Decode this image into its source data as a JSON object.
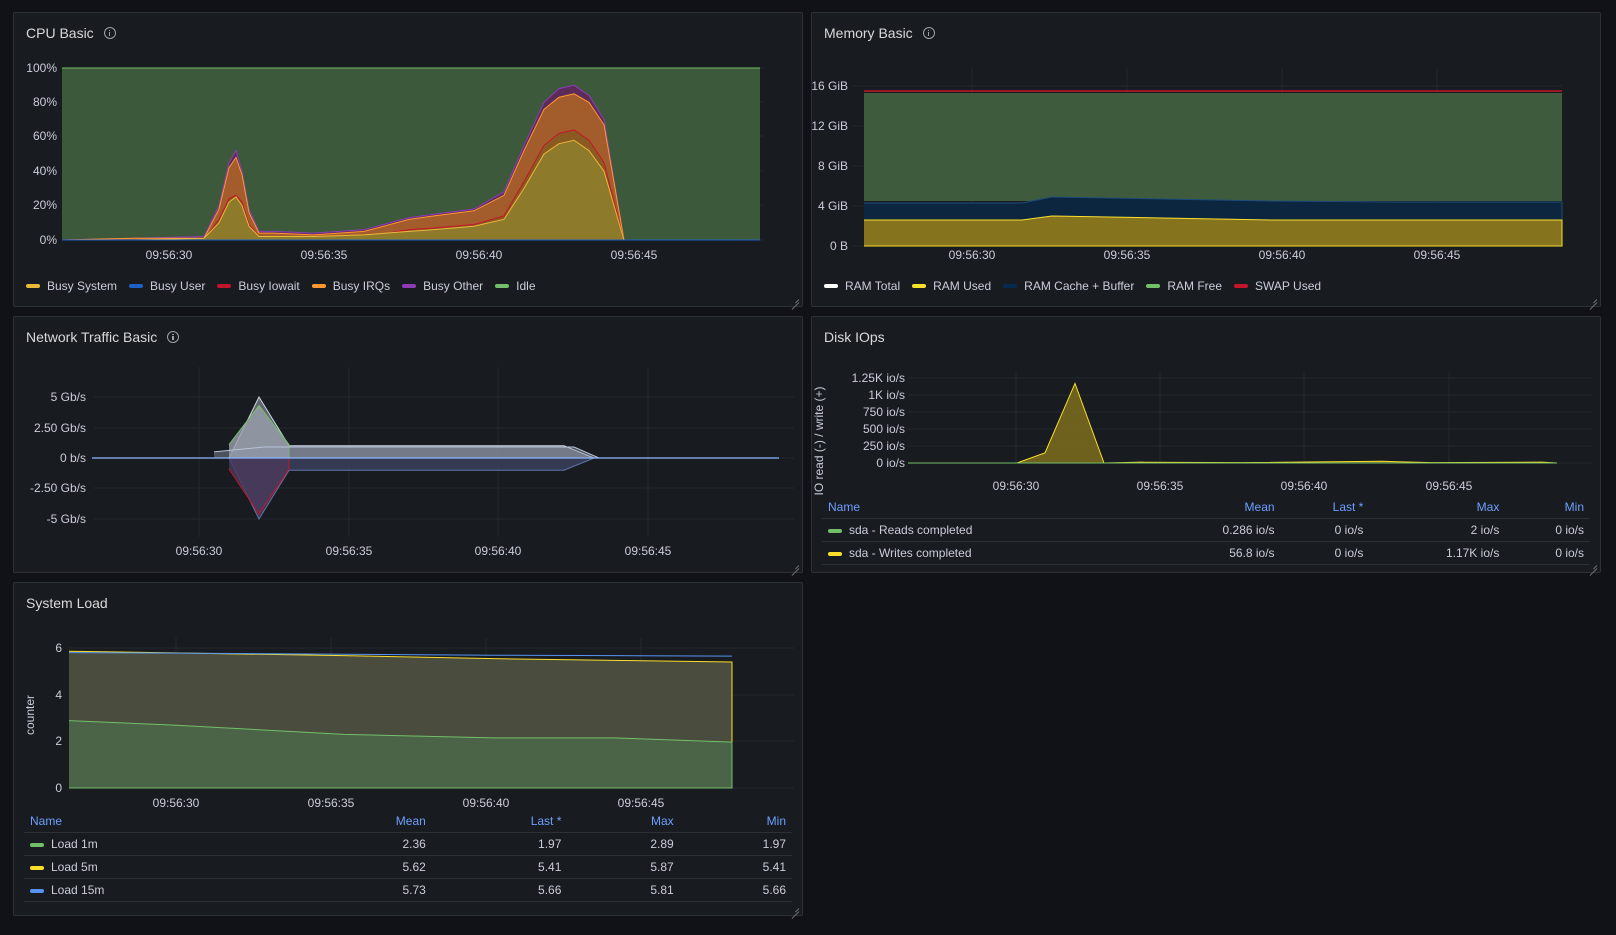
{
  "panels": {
    "cpu": {
      "title": "CPU Basic",
      "y_ticks": [
        "100%",
        "80%",
        "60%",
        "40%",
        "20%",
        "0%"
      ],
      "x_ticks": [
        "09:56:30",
        "09:56:35",
        "09:56:40",
        "09:56:45"
      ],
      "legend": [
        {
          "label": "Busy System",
          "color": "#eab839"
        },
        {
          "label": "Busy User",
          "color": "#1f60c4"
        },
        {
          "label": "Busy Iowait",
          "color": "#c4162a"
        },
        {
          "label": "Busy IRQs",
          "color": "#ff9830"
        },
        {
          "label": "Busy Other",
          "color": "#8f3bb8"
        },
        {
          "label": "Idle",
          "color": "#73bf69"
        }
      ]
    },
    "memory": {
      "title": "Memory Basic",
      "y_ticks": [
        "16 GiB",
        "12 GiB",
        "8 GiB",
        "4 GiB",
        "0 B"
      ],
      "x_ticks": [
        "09:56:30",
        "09:56:35",
        "09:56:40",
        "09:56:45"
      ],
      "legend": [
        {
          "label": "RAM Total",
          "color": "#ffffff"
        },
        {
          "label": "RAM Used",
          "color": "#fade2a"
        },
        {
          "label": "RAM Cache + Buffer",
          "color": "#052b51"
        },
        {
          "label": "RAM Free",
          "color": "#73bf69"
        },
        {
          "label": "SWAP Used",
          "color": "#c4162a"
        }
      ]
    },
    "network": {
      "title": "Network Traffic Basic",
      "y_ticks": [
        "5 Gb/s",
        "2.50 Gb/s",
        "0 b/s",
        "-2.50 Gb/s",
        "-5 Gb/s"
      ],
      "x_ticks": [
        "09:56:30",
        "09:56:35",
        "09:56:40",
        "09:56:45"
      ]
    },
    "disk": {
      "title": "Disk IOps",
      "y_axis_label": "IO read (-) / write (+)",
      "y_ticks": [
        "1.25K io/s",
        "1K io/s",
        "750 io/s",
        "500 io/s",
        "250 io/s",
        "0 io/s"
      ],
      "x_ticks": [
        "09:56:30",
        "09:56:35",
        "09:56:40",
        "09:56:45"
      ],
      "table": {
        "headers": [
          "Name",
          "Mean",
          "Last *",
          "Max",
          "Min"
        ],
        "rows": [
          {
            "name": "sda - Reads completed",
            "color": "#73bf69",
            "mean": "0.286 io/s",
            "last": "0 io/s",
            "max": "2 io/s",
            "min": "0 io/s"
          },
          {
            "name": "sda - Writes completed",
            "color": "#fade2a",
            "mean": "56.8 io/s",
            "last": "0 io/s",
            "max": "1.17K io/s",
            "min": "0 io/s"
          }
        ]
      }
    },
    "load": {
      "title": "System Load",
      "y_axis_label": "counter",
      "y_ticks": [
        "6",
        "4",
        "2",
        "0"
      ],
      "x_ticks": [
        "09:56:30",
        "09:56:35",
        "09:56:40",
        "09:56:45"
      ],
      "table": {
        "headers": [
          "Name",
          "Mean",
          "Last *",
          "Max",
          "Min"
        ],
        "rows": [
          {
            "name": "Load 1m",
            "color": "#73bf69",
            "mean": "2.36",
            "last": "1.97",
            "max": "2.89",
            "min": "1.97"
          },
          {
            "name": "Load 5m",
            "color": "#fade2a",
            "mean": "5.62",
            "last": "5.41",
            "max": "5.87",
            "min": "5.41"
          },
          {
            "name": "Load 15m",
            "color": "#5794f2",
            "mean": "5.73",
            "last": "5.66",
            "max": "5.81",
            "min": "5.66"
          }
        ]
      }
    }
  }
}
